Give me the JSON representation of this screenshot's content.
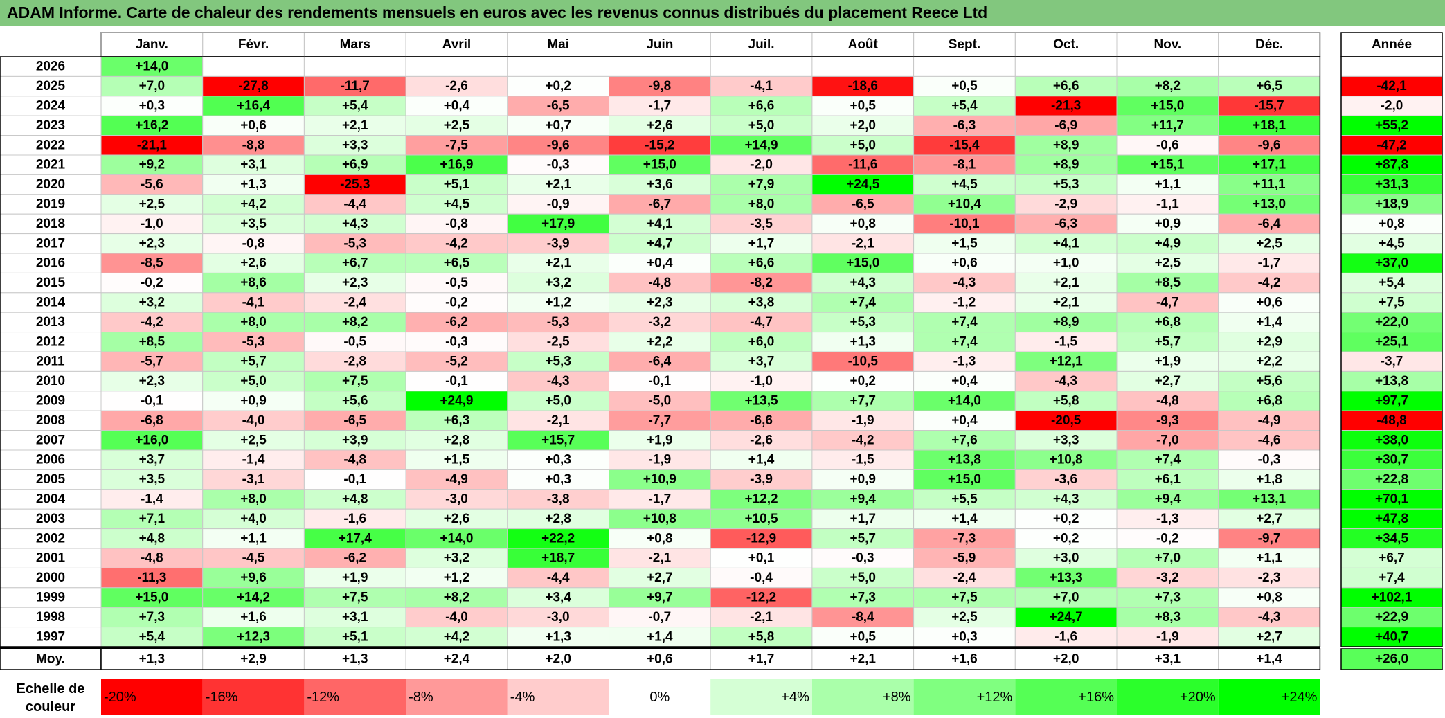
{
  "title": "ADAM Informe. Carte de chaleur des rendements mensuels en euros avec les revenus connus distribués du placement Reece Ltd",
  "chart_data": {
    "type": "heatmap",
    "months": [
      "Janv.",
      "Févr.",
      "Mars",
      "Avril",
      "Mai",
      "Juin",
      "Juil.",
      "Août",
      "Sept.",
      "Oct.",
      "Nov.",
      "Déc."
    ],
    "year_header": "Année",
    "average_label": "Moy.",
    "scale_label": "Echelle de couleur",
    "rows": [
      {
        "year": "2026",
        "months": [
          "+14,0",
          "",
          "",
          "",
          "",
          "",
          "",
          "",
          "",
          "",
          "",
          ""
        ],
        "total": ""
      },
      {
        "year": "2025",
        "months": [
          "+7,0",
          "-27,8",
          "-11,7",
          "-2,6",
          "+0,2",
          "-9,8",
          "-4,1",
          "-18,6",
          "+0,5",
          "+6,6",
          "+8,2",
          "+6,5"
        ],
        "total": "-42,1"
      },
      {
        "year": "2024",
        "months": [
          "+0,3",
          "+16,4",
          "+5,4",
          "+0,4",
          "-6,5",
          "-1,7",
          "+6,6",
          "+0,5",
          "+5,4",
          "-21,3",
          "+15,0",
          "-15,7"
        ],
        "total": "-2,0"
      },
      {
        "year": "2023",
        "months": [
          "+16,2",
          "+0,6",
          "+2,1",
          "+2,5",
          "+0,7",
          "+2,6",
          "+5,0",
          "+2,0",
          "-6,3",
          "-6,9",
          "+11,7",
          "+18,1"
        ],
        "total": "+55,2"
      },
      {
        "year": "2022",
        "months": [
          "-21,1",
          "-8,8",
          "+3,3",
          "-7,5",
          "-9,6",
          "-15,2",
          "+14,9",
          "+5,0",
          "-15,4",
          "+8,9",
          "-0,6",
          "-9,6"
        ],
        "total": "-47,2"
      },
      {
        "year": "2021",
        "months": [
          "+9,2",
          "+3,1",
          "+6,9",
          "+16,9",
          "-0,3",
          "+15,0",
          "-2,0",
          "-11,6",
          "-8,1",
          "+8,9",
          "+15,1",
          "+17,1"
        ],
        "total": "+87,8"
      },
      {
        "year": "2020",
        "months": [
          "-5,6",
          "+1,3",
          "-25,3",
          "+5,1",
          "+2,1",
          "+3,6",
          "+7,9",
          "+24,5",
          "+4,5",
          "+5,3",
          "+1,1",
          "+11,1"
        ],
        "total": "+31,3"
      },
      {
        "year": "2019",
        "months": [
          "+2,5",
          "+4,2",
          "-4,4",
          "+4,5",
          "-0,9",
          "-6,7",
          "+8,0",
          "-6,5",
          "+10,4",
          "-2,9",
          "-1,1",
          "+13,0"
        ],
        "total": "+18,9"
      },
      {
        "year": "2018",
        "months": [
          "-1,0",
          "+3,5",
          "+4,3",
          "-0,8",
          "+17,9",
          "+4,1",
          "-3,5",
          "+0,8",
          "-10,1",
          "-6,3",
          "+0,9",
          "-6,4"
        ],
        "total": "+0,8"
      },
      {
        "year": "2017",
        "months": [
          "+2,3",
          "-0,8",
          "-5,3",
          "-4,2",
          "-3,9",
          "+4,7",
          "+1,7",
          "-2,1",
          "+1,5",
          "+4,1",
          "+4,9",
          "+2,5"
        ],
        "total": "+4,5"
      },
      {
        "year": "2016",
        "months": [
          "-8,5",
          "+2,6",
          "+6,7",
          "+6,5",
          "+2,1",
          "+0,4",
          "+6,6",
          "+15,0",
          "+0,6",
          "+1,0",
          "+2,5",
          "-1,7"
        ],
        "total": "+37,0"
      },
      {
        "year": "2015",
        "months": [
          "-0,2",
          "+8,6",
          "+2,3",
          "-0,5",
          "+3,2",
          "-4,8",
          "-8,2",
          "+4,3",
          "-4,3",
          "+2,1",
          "+8,5",
          "-4,2"
        ],
        "total": "+5,4"
      },
      {
        "year": "2014",
        "months": [
          "+3,2",
          "-4,1",
          "-2,4",
          "-0,2",
          "+1,2",
          "+2,3",
          "+3,8",
          "+7,4",
          "-1,2",
          "+2,1",
          "-4,7",
          "+0,6"
        ],
        "total": "+7,5"
      },
      {
        "year": "2013",
        "months": [
          "-4,2",
          "+8,0",
          "+8,2",
          "-6,2",
          "-5,3",
          "-3,2",
          "-4,7",
          "+5,3",
          "+7,4",
          "+8,9",
          "+6,8",
          "+1,4"
        ],
        "total": "+22,0"
      },
      {
        "year": "2012",
        "months": [
          "+8,5",
          "-5,3",
          "-0,5",
          "-0,3",
          "-2,5",
          "+2,2",
          "+6,0",
          "+1,3",
          "+7,4",
          "-1,5",
          "+5,7",
          "+2,9"
        ],
        "total": "+25,1"
      },
      {
        "year": "2011",
        "months": [
          "-5,7",
          "+5,7",
          "-2,8",
          "-5,2",
          "+5,3",
          "-6,4",
          "+3,7",
          "-10,5",
          "-1,3",
          "+12,1",
          "+1,9",
          "+2,2"
        ],
        "total": "-3,7"
      },
      {
        "year": "2010",
        "months": [
          "+2,3",
          "+5,0",
          "+7,5",
          "-0,1",
          "-4,3",
          "-0,1",
          "-1,0",
          "+0,2",
          "+0,4",
          "-4,3",
          "+2,7",
          "+5,6"
        ],
        "total": "+13,8"
      },
      {
        "year": "2009",
        "months": [
          "-0,1",
          "+0,9",
          "+5,6",
          "+24,9",
          "+5,0",
          "-5,0",
          "+13,5",
          "+7,7",
          "+14,0",
          "+5,8",
          "-4,8",
          "+6,8"
        ],
        "total": "+97,7"
      },
      {
        "year": "2008",
        "months": [
          "-6,8",
          "-4,0",
          "-6,5",
          "+6,3",
          "-2,1",
          "-7,7",
          "-6,6",
          "-1,9",
          "+0,4",
          "-20,5",
          "-9,3",
          "-4,9"
        ],
        "total": "-48,8"
      },
      {
        "year": "2007",
        "months": [
          "+16,0",
          "+2,5",
          "+3,9",
          "+2,8",
          "+15,7",
          "+1,9",
          "-2,6",
          "-4,2",
          "+7,6",
          "+3,3",
          "-7,0",
          "-4,6"
        ],
        "total": "+38,0"
      },
      {
        "year": "2006",
        "months": [
          "+3,7",
          "-1,4",
          "-4,8",
          "+1,5",
          "+0,3",
          "-1,9",
          "+1,4",
          "-1,5",
          "+13,8",
          "+10,8",
          "+7,4",
          "-0,3"
        ],
        "total": "+30,7"
      },
      {
        "year": "2005",
        "months": [
          "+3,5",
          "-3,1",
          "-0,1",
          "-4,9",
          "+0,3",
          "+10,9",
          "-3,9",
          "+0,9",
          "+15,0",
          "-3,6",
          "+6,1",
          "+1,8"
        ],
        "total": "+22,8"
      },
      {
        "year": "2004",
        "months": [
          "-1,4",
          "+8,0",
          "+4,8",
          "-3,0",
          "-3,8",
          "-1,7",
          "+12,2",
          "+9,4",
          "+5,5",
          "+4,3",
          "+9,4",
          "+13,1"
        ],
        "total": "+70,1"
      },
      {
        "year": "2003",
        "months": [
          "+7,1",
          "+4,0",
          "-1,6",
          "+2,6",
          "+2,8",
          "+10,8",
          "+10,5",
          "+1,7",
          "+1,4",
          "+0,2",
          "-1,3",
          "+2,7"
        ],
        "total": "+47,8"
      },
      {
        "year": "2002",
        "months": [
          "+4,8",
          "+1,1",
          "+17,4",
          "+14,0",
          "+22,2",
          "+0,8",
          "-12,9",
          "+5,7",
          "-7,3",
          "+0,2",
          "-0,2",
          "-9,7"
        ],
        "total": "+34,5"
      },
      {
        "year": "2001",
        "months": [
          "-4,8",
          "-4,5",
          "-6,2",
          "+3,2",
          "+18,7",
          "-2,1",
          "+0,1",
          "-0,3",
          "-5,9",
          "+3,0",
          "+7,0",
          "+1,1"
        ],
        "total": "+6,7"
      },
      {
        "year": "2000",
        "months": [
          "-11,3",
          "+9,6",
          "+1,9",
          "+1,2",
          "-4,4",
          "+2,7",
          "-0,4",
          "+5,0",
          "-2,4",
          "+13,3",
          "-3,2",
          "-2,3"
        ],
        "total": "+7,4"
      },
      {
        "year": "1999",
        "months": [
          "+15,0",
          "+14,2",
          "+7,5",
          "+8,2",
          "+3,4",
          "+9,7",
          "-12,2",
          "+7,3",
          "+7,5",
          "+7,0",
          "+7,3",
          "+0,8"
        ],
        "total": "+102,1"
      },
      {
        "year": "1998",
        "months": [
          "+7,3",
          "+1,6",
          "+3,1",
          "-4,0",
          "-3,0",
          "-0,7",
          "-2,1",
          "-8,4",
          "+2,5",
          "+24,7",
          "+8,3",
          "-4,3"
        ],
        "total": "+22,9"
      },
      {
        "year": "1997",
        "months": [
          "+5,4",
          "+12,3",
          "+5,1",
          "+4,2",
          "+1,3",
          "+1,4",
          "+5,8",
          "+0,5",
          "+0,3",
          "-1,6",
          "-1,9",
          "+2,7"
        ],
        "total": "+40,7"
      }
    ],
    "average": {
      "months": [
        "+1,3",
        "+2,9",
        "+1,3",
        "+2,4",
        "+2,0",
        "+0,6",
        "+1,7",
        "+2,1",
        "+1,6",
        "+2,0",
        "+3,1",
        "+1,4"
      ],
      "total": "+26,0"
    },
    "color_scale": [
      {
        "label": "-20%",
        "color": "#ff0000"
      },
      {
        "label": "-16%",
        "color": "#ff3333"
      },
      {
        "label": "-12%",
        "color": "#ff6666"
      },
      {
        "label": "-8%",
        "color": "#ff9999"
      },
      {
        "label": "-4%",
        "color": "#ffcccc"
      },
      {
        "label": "0%",
        "color": "#ffffff"
      },
      {
        "label": "+4%",
        "color": "#d5ffd5"
      },
      {
        "label": "+8%",
        "color": "#aaffaa"
      },
      {
        "label": "+12%",
        "color": "#80ff80"
      },
      {
        "label": "+16%",
        "color": "#55ff55"
      },
      {
        "label": "+20%",
        "color": "#2bff2b"
      },
      {
        "label": "+24%",
        "color": "#00ff00"
      }
    ],
    "colors": {
      "negative": "#ff0000",
      "positive": "#00ff00",
      "neutral": "#ffffff",
      "title_bar": "#82c77e"
    }
  }
}
